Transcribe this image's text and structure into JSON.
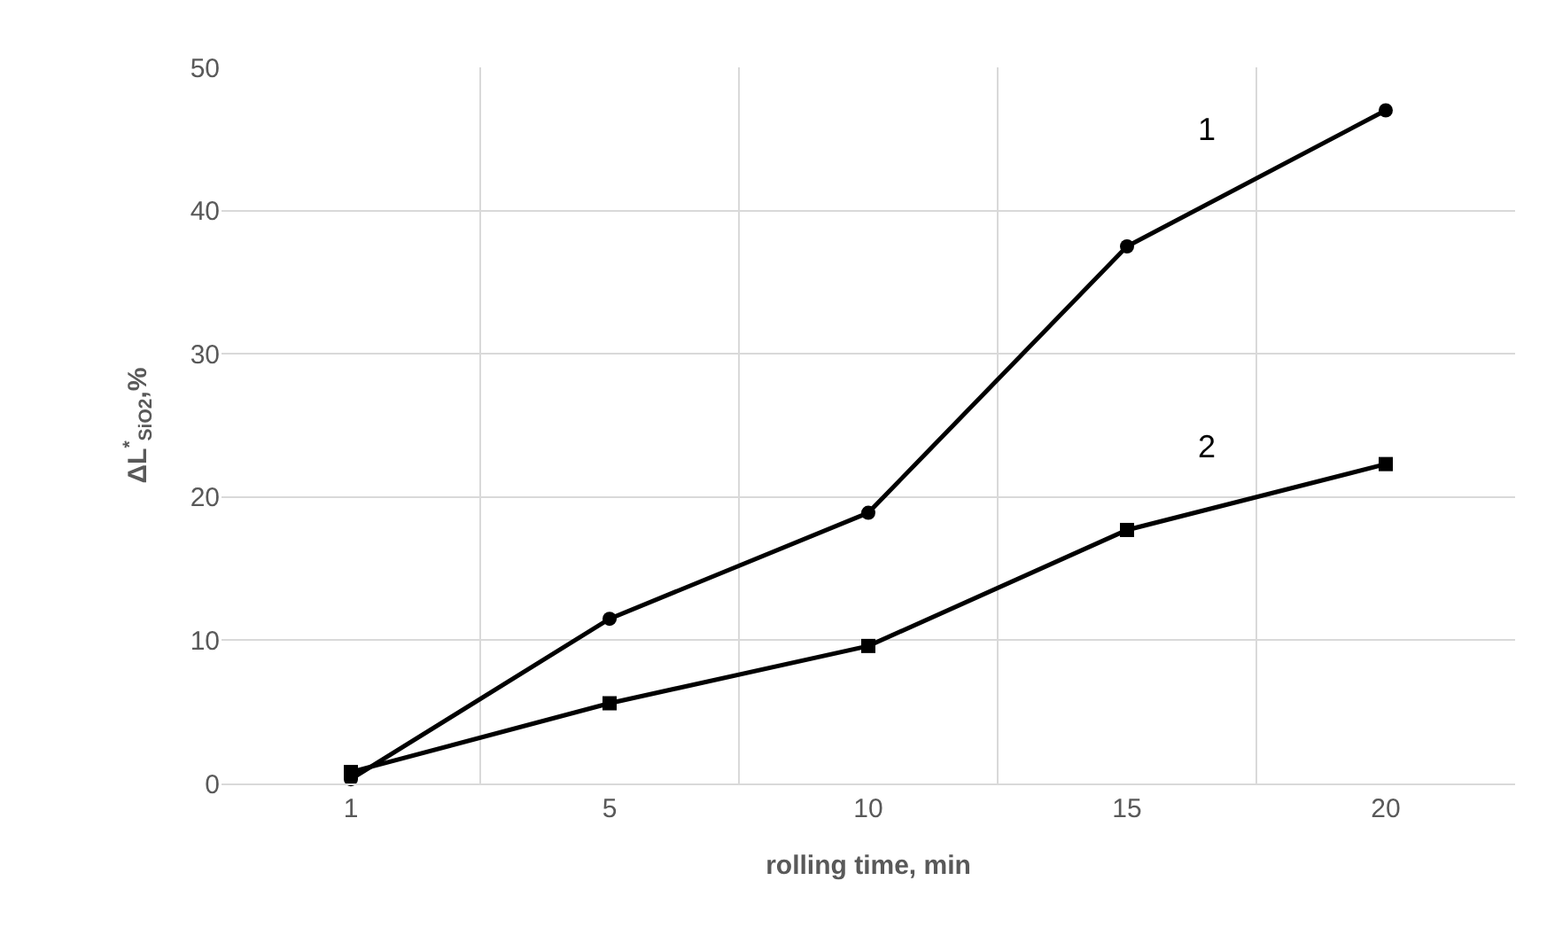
{
  "chart_data": {
    "type": "line",
    "xlabel": "rolling time, min",
    "ylabel": "ΔL$^{*}$$_{SiO2}$,%",
    "categories": [
      "1",
      "5",
      "10",
      "15",
      "20"
    ],
    "series": [
      {
        "name": "1",
        "color": "#000000",
        "marker": "circle",
        "values": [
          0.3,
          11.5,
          18.9,
          37.5,
          47
        ]
      },
      {
        "name": "2",
        "color": "#000000",
        "marker": "square",
        "values": [
          0.8,
          5.6,
          9.6,
          17.7,
          22.3
        ]
      }
    ],
    "ylim": [
      0,
      50
    ],
    "yticks": [
      0,
      10,
      20,
      30,
      40,
      50
    ],
    "grid": true,
    "legend": false,
    "line_style": "solid"
  }
}
